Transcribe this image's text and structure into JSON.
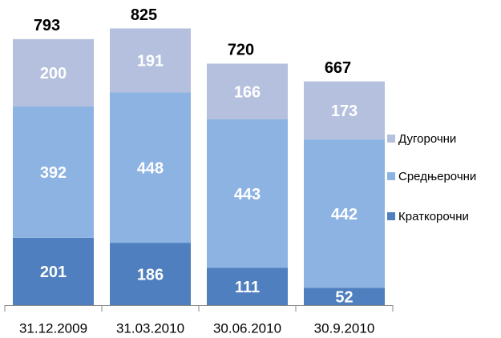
{
  "chart_data": {
    "type": "stacked_bar",
    "categories": [
      "31.12.2009",
      "31.03.2010",
      "30.06.2010",
      "30.9.2010"
    ],
    "series": [
      {
        "name": "Краткорочни",
        "color": "#4f7fbe",
        "values": [
          201,
          186,
          111,
          52
        ]
      },
      {
        "name": "Средњерочни",
        "color": "#8db3e3",
        "values": [
          392,
          448,
          443,
          442
        ]
      },
      {
        "name": "Дугорочни",
        "color": "#b4c0de",
        "values": [
          200,
          191,
          166,
          173
        ]
      }
    ],
    "totals": [
      793,
      825,
      720,
      667
    ],
    "ylim": [
      0,
      850
    ],
    "legend": "right"
  }
}
